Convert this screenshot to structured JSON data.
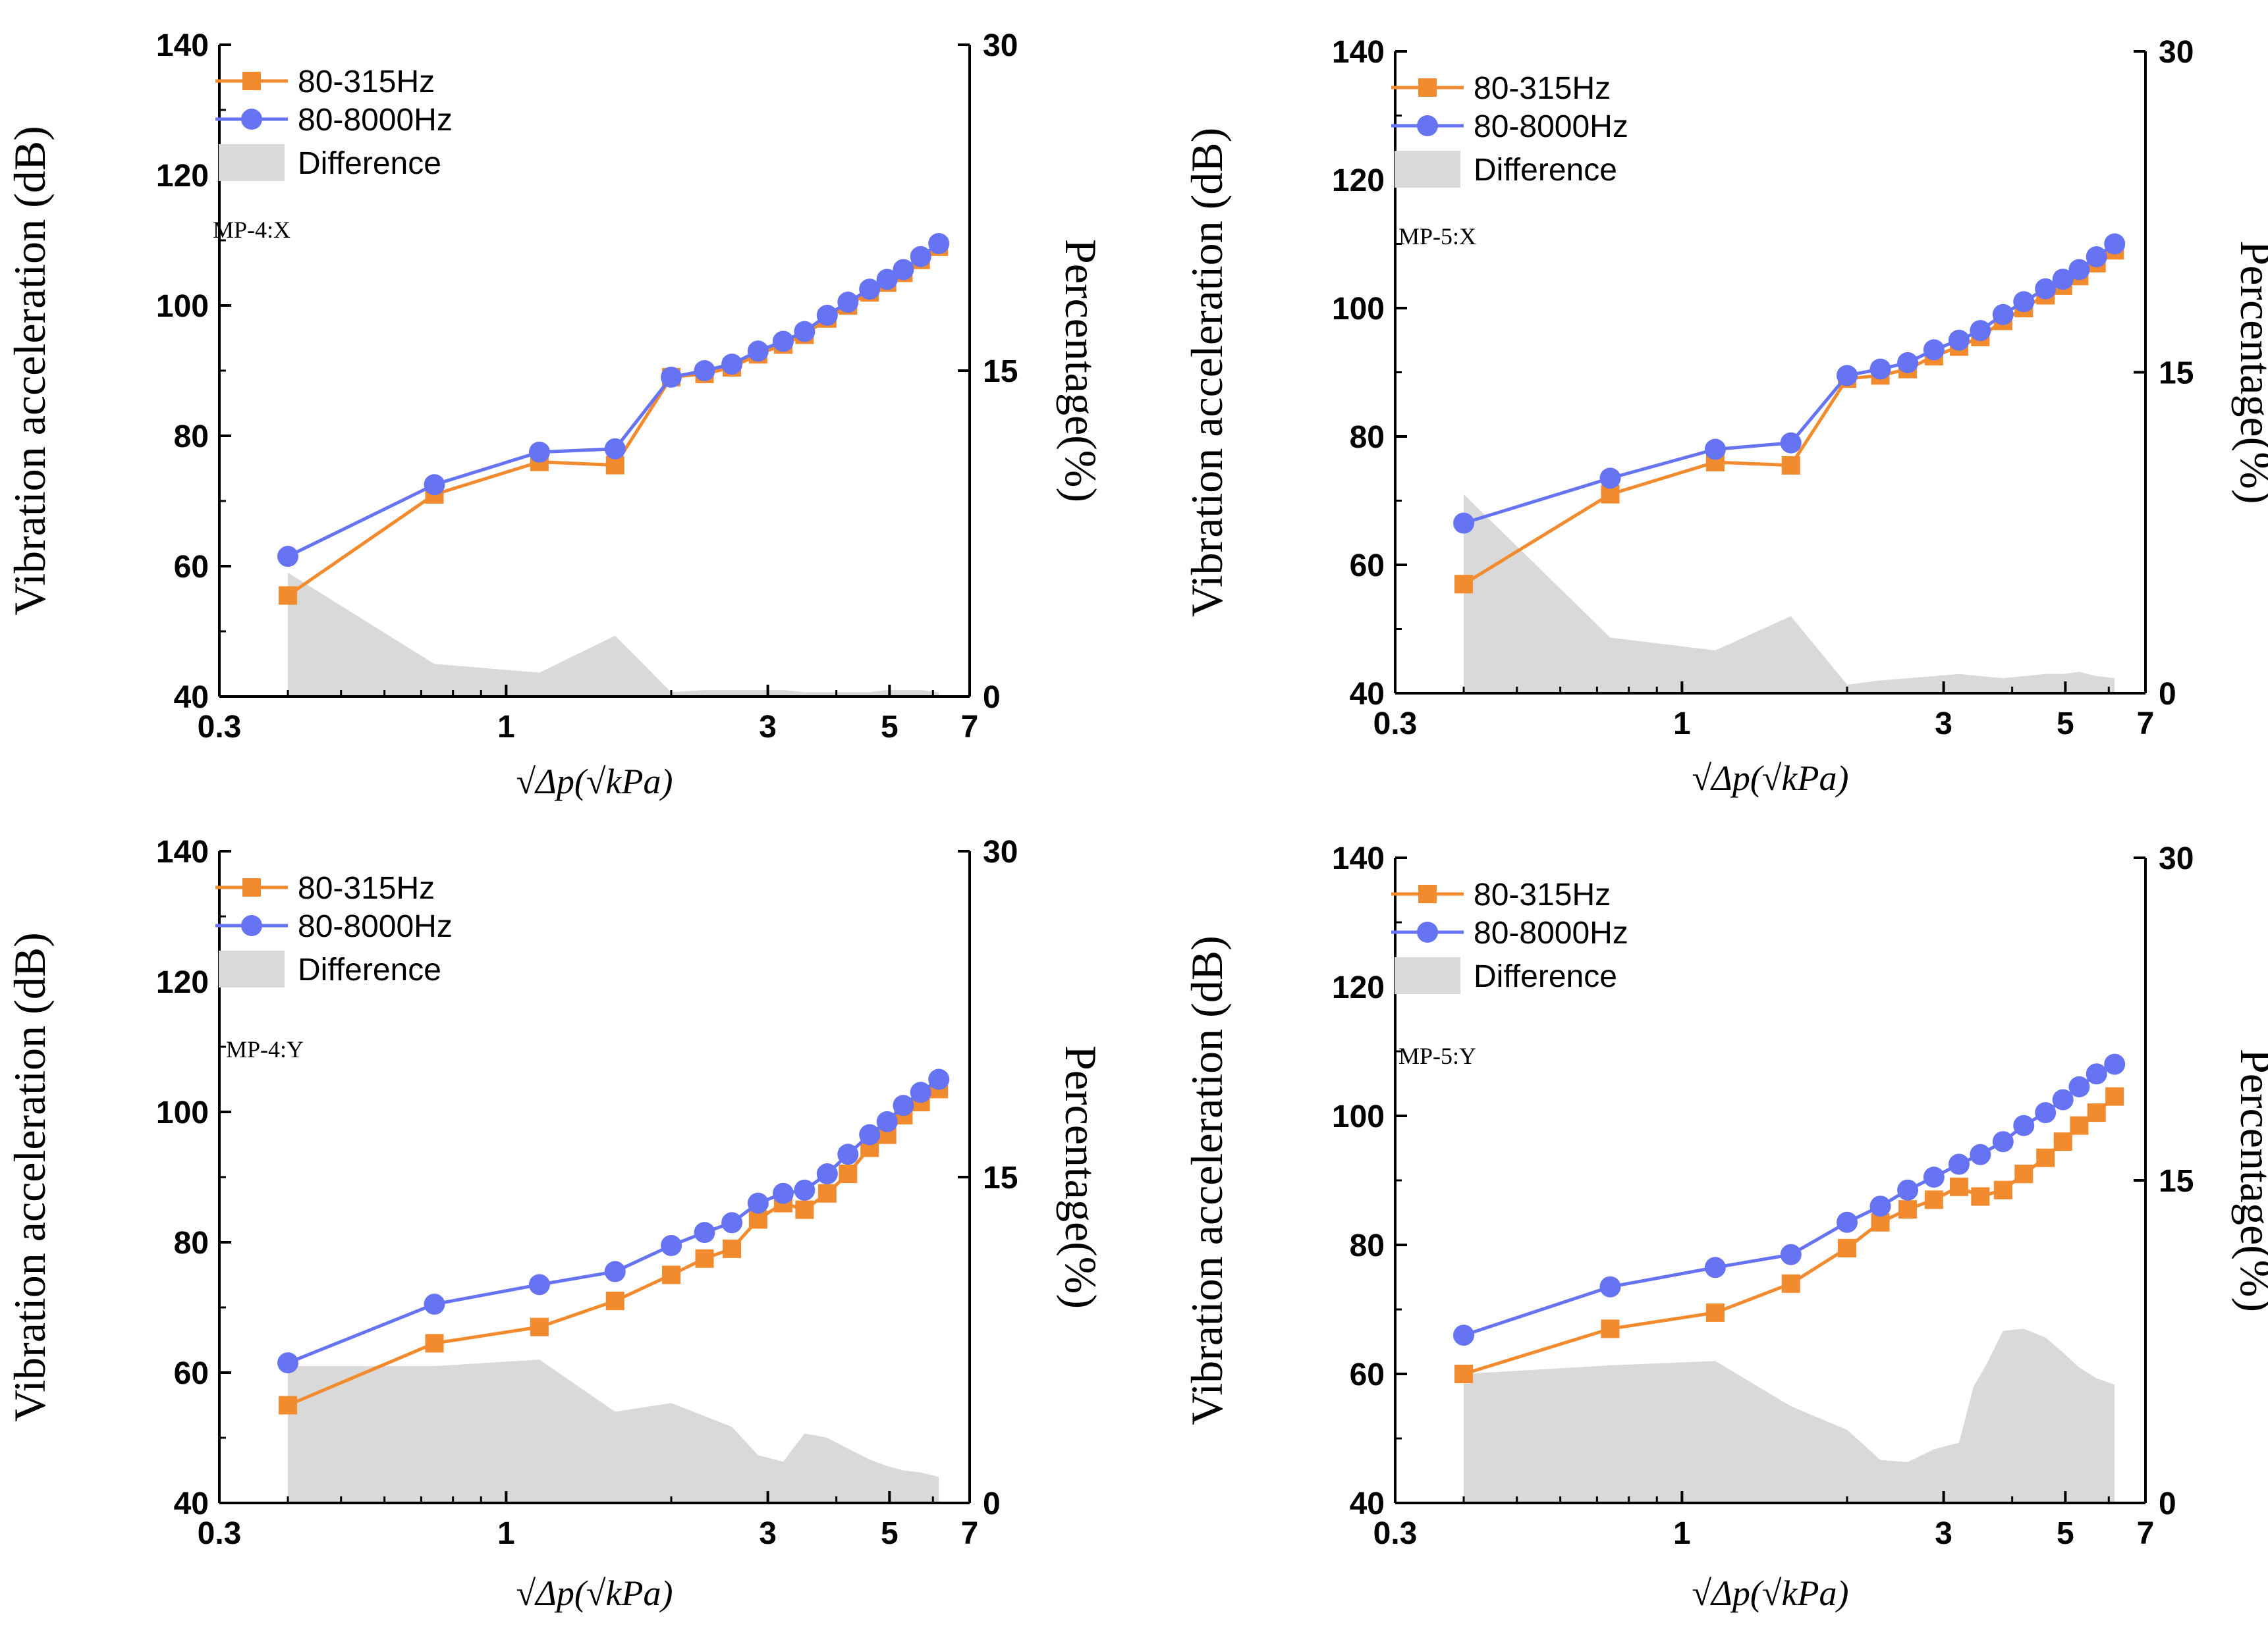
{
  "figure": {
    "colors": {
      "series1": "#F28A2E",
      "series2": "#6673F2",
      "difference_fill": "#D9D9D9",
      "axis": "#000000"
    }
  },
  "chart_data": [
    {
      "type": "line",
      "panel_label": "MP-4:X",
      "xlabel": "√Δp(√kPa)",
      "ylabel": "Vibration acceleration (dB)",
      "y2label": "Percentage(%)",
      "xscale": "log",
      "xlim": [
        0.3,
        7
      ],
      "xticks": [
        0.3,
        1,
        3,
        5,
        7
      ],
      "xtick_labels": [
        "0.3",
        "1",
        "3",
        "5",
        "7"
      ],
      "ylim": [
        40,
        140
      ],
      "yticks": [
        40,
        60,
        80,
        100,
        120,
        140
      ],
      "ytick_labels": [
        "40",
        "60",
        "80",
        "100",
        "120",
        "140"
      ],
      "y2lim": [
        0,
        30
      ],
      "y2ticks": [
        0,
        15,
        30
      ],
      "y2tick_labels": [
        "0",
        "15",
        "30"
      ],
      "legend_position": "top-left",
      "x": [
        0.4,
        0.74,
        1.15,
        1.58,
        2.0,
        2.3,
        2.58,
        2.88,
        3.2,
        3.5,
        3.85,
        4.2,
        4.6,
        4.95,
        5.3,
        5.7,
        6.15
      ],
      "series": [
        {
          "name": "80-315Hz",
          "marker": "square",
          "values": [
            55.5,
            71,
            76,
            75.5,
            89,
            89.5,
            90.5,
            92.5,
            94,
            95.5,
            98,
            100,
            102,
            103.5,
            105,
            107,
            109
          ]
        },
        {
          "name": "80-8000Hz",
          "marker": "circle",
          "values": [
            61.5,
            72.5,
            77.5,
            78,
            89,
            90,
            91,
            93,
            94.5,
            96,
            98.5,
            100.5,
            102.5,
            104,
            105.5,
            107.5,
            109.5
          ]
        }
      ],
      "difference": {
        "name": "Difference",
        "x": [
          0.4,
          0.74,
          1.15,
          1.58,
          2.0,
          2.3,
          2.58,
          2.88,
          3.2,
          3.5,
          3.85,
          4.2,
          4.6,
          4.95,
          5.3,
          5.7,
          6.15
        ],
        "values": [
          5.7,
          1.5,
          1.1,
          2.8,
          0.2,
          0.3,
          0.3,
          0.3,
          0.3,
          0.2,
          0.2,
          0.2,
          0.2,
          0.3,
          0.3,
          0.3,
          0.2
        ]
      }
    },
    {
      "type": "line",
      "panel_label": "MP-5:X",
      "xlabel": "√Δp(√kPa)",
      "ylabel": "Vibration acceleration (dB)",
      "y2label": "Percentage(%)",
      "xscale": "log",
      "xlim": [
        0.3,
        7
      ],
      "xticks": [
        0.3,
        1,
        3,
        5,
        7
      ],
      "xtick_labels": [
        "0.3",
        "1",
        "3",
        "5",
        "7"
      ],
      "ylim": [
        40,
        140
      ],
      "yticks": [
        40,
        60,
        80,
        100,
        120,
        140
      ],
      "ytick_labels": [
        "40",
        "60",
        "80",
        "100",
        "120",
        "140"
      ],
      "y2lim": [
        0,
        30
      ],
      "y2ticks": [
        0,
        15,
        30
      ],
      "y2tick_labels": [
        "0",
        "15",
        "30"
      ],
      "legend_position": "top-left",
      "x": [
        0.4,
        0.74,
        1.15,
        1.58,
        2.0,
        2.3,
        2.58,
        2.88,
        3.2,
        3.5,
        3.85,
        4.2,
        4.6,
        4.95,
        5.3,
        5.7,
        6.15
      ],
      "series": [
        {
          "name": "80-315Hz",
          "marker": "square",
          "values": [
            57,
            71,
            76,
            75.5,
            89,
            89.5,
            90.5,
            92.5,
            94,
            95.5,
            98,
            100,
            102,
            103.5,
            105,
            107,
            109
          ]
        },
        {
          "name": "80-8000Hz",
          "marker": "circle",
          "values": [
            66.5,
            73.5,
            78,
            79,
            89.5,
            90.5,
            91.5,
            93.5,
            95,
            96.5,
            99,
            101,
            103,
            104.5,
            106,
            108,
            110
          ]
        }
      ],
      "difference": {
        "name": "Difference",
        "x": [
          0.4,
          0.74,
          1.15,
          1.58,
          2.0,
          2.3,
          2.58,
          2.88,
          3.2,
          3.5,
          3.85,
          4.2,
          4.6,
          4.95,
          5.3,
          5.7,
          6.15
        ],
        "values": [
          9.3,
          2.6,
          2.0,
          3.6,
          0.4,
          0.6,
          0.7,
          0.8,
          0.9,
          0.8,
          0.7,
          0.8,
          0.9,
          0.9,
          1.0,
          0.8,
          0.7
        ]
      }
    },
    {
      "type": "line",
      "panel_label": "MP-4:Y",
      "xlabel": "√Δp(√kPa)",
      "ylabel": "Vibration acceleration (dB)",
      "y2label": "Percentage(%)",
      "xscale": "log",
      "xlim": [
        0.3,
        7
      ],
      "xticks": [
        0.3,
        1,
        3,
        5,
        7
      ],
      "xtick_labels": [
        "0.3",
        "1",
        "3",
        "5",
        "7"
      ],
      "ylim": [
        40,
        140
      ],
      "yticks": [
        40,
        60,
        80,
        100,
        120,
        140
      ],
      "ytick_labels": [
        "40",
        "60",
        "80",
        "100",
        "120",
        "140"
      ],
      "y2lim": [
        0,
        30
      ],
      "y2ticks": [
        0,
        15,
        30
      ],
      "y2tick_labels": [
        "0",
        "15",
        "30"
      ],
      "legend_position": "top-left",
      "x": [
        0.4,
        0.74,
        1.15,
        1.58,
        2.0,
        2.3,
        2.58,
        2.88,
        3.2,
        3.5,
        3.85,
        4.2,
        4.6,
        4.95,
        5.3,
        5.7,
        6.15
      ],
      "series": [
        {
          "name": "80-315Hz",
          "marker": "square",
          "values": [
            55,
            64.5,
            67,
            71,
            75,
            77.5,
            79,
            83.5,
            86,
            85,
            87.5,
            90.5,
            94.5,
            96.5,
            99.5,
            101.5,
            103.5
          ]
        },
        {
          "name": "80-8000Hz",
          "marker": "circle",
          "values": [
            61.5,
            70.5,
            73.5,
            75.5,
            79.5,
            81.5,
            83,
            86,
            87.5,
            88,
            90.5,
            93.5,
            96.5,
            98.5,
            101,
            103,
            105
          ]
        }
      ],
      "difference": {
        "name": "Difference",
        "x": [
          0.4,
          0.74,
          1.15,
          1.58,
          2.0,
          2.3,
          2.58,
          2.88,
          3.2,
          3.5,
          3.85,
          4.2,
          4.6,
          4.95,
          5.3,
          5.7,
          6.15
        ],
        "values": [
          6.3,
          6.3,
          6.6,
          4.2,
          4.6,
          4.0,
          3.5,
          2.2,
          1.9,
          3.2,
          3.0,
          2.5,
          2.0,
          1.7,
          1.5,
          1.4,
          1.2
        ]
      }
    },
    {
      "type": "line",
      "panel_label": "MP-5:Y",
      "xlabel": "√Δp(√kPa)",
      "ylabel": "Vibration acceleration (dB)",
      "y2label": "Percentage(%)",
      "xscale": "log",
      "xlim": [
        0.3,
        7
      ],
      "xticks": [
        0.3,
        1,
        3,
        5,
        7
      ],
      "xtick_labels": [
        "0.3",
        "1",
        "3",
        "5",
        "7"
      ],
      "ylim": [
        40,
        140
      ],
      "yticks": [
        40,
        60,
        80,
        100,
        120,
        140
      ],
      "ytick_labels": [
        "40",
        "60",
        "80",
        "100",
        "120",
        "140"
      ],
      "y2lim": [
        0,
        30
      ],
      "y2ticks": [
        0,
        15,
        30
      ],
      "y2tick_labels": [
        "0",
        "15",
        "30"
      ],
      "legend_position": "top-left",
      "x": [
        0.4,
        0.74,
        1.15,
        1.58,
        2.0,
        2.3,
        2.58,
        2.88,
        3.2,
        3.5,
        3.85,
        4.2,
        4.6,
        4.95,
        5.3,
        5.7,
        6.15
      ],
      "series": [
        {
          "name": "80-315Hz",
          "marker": "square",
          "values": [
            60,
            67,
            69.5,
            74,
            79.5,
            83.5,
            85.5,
            87,
            89,
            87.5,
            88.5,
            91,
            93.5,
            96,
            98.5,
            100.5,
            103
          ]
        },
        {
          "name": "80-8000Hz",
          "marker": "circle",
          "values": [
            66,
            73.5,
            76.5,
            78.5,
            83.5,
            86,
            88.5,
            90.5,
            92.5,
            94,
            96,
            98.5,
            100.5,
            102.5,
            104.5,
            106.5,
            108
          ]
        }
      ],
      "difference": {
        "name": "Difference",
        "x": [
          0.4,
          0.74,
          1.15,
          1.58,
          2.0,
          2.3,
          2.58,
          2.88,
          3.2,
          3.4,
          3.6,
          3.85,
          4.2,
          4.6,
          4.95,
          5.3,
          5.7,
          6.15
        ],
        "values": [
          6.0,
          6.4,
          6.6,
          4.5,
          3.4,
          2.0,
          1.9,
          2.5,
          2.8,
          5.4,
          6.5,
          8.0,
          8.1,
          7.7,
          7.0,
          6.3,
          5.8,
          5.5
        ]
      }
    }
  ]
}
